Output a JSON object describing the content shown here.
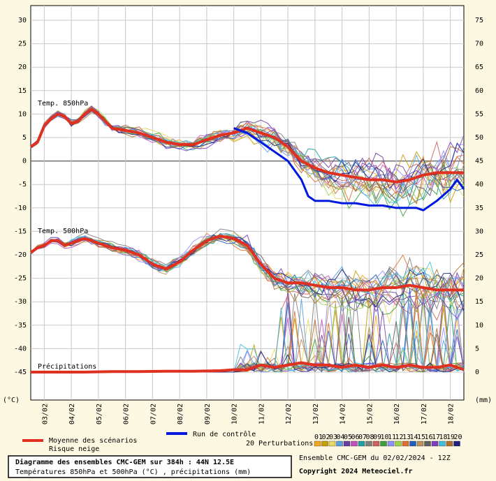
{
  "chart_data": {
    "type": "line",
    "y_unit_left": "(°C)",
    "y_unit_right": "(mm)",
    "y_left_ticks": [
      30,
      25,
      20,
      15,
      10,
      5,
      0,
      -5,
      -10,
      -15,
      -20,
      -25,
      -30,
      -35,
      -40,
      -45
    ],
    "y_right_ticks": [
      75,
      70,
      65,
      60,
      55,
      50,
      45,
      40,
      35,
      30,
      25,
      20,
      15,
      10,
      5,
      0
    ],
    "ylim_left": [
      -45,
      30
    ],
    "ylim_right": [
      0,
      75
    ],
    "x_ticks": [
      "03/02",
      "04/02",
      "05/02",
      "06/02",
      "07/02",
      "08/02",
      "09/02",
      "10/02",
      "11/02",
      "12/02",
      "13/02",
      "14/02",
      "15/02",
      "16/02",
      "17/02",
      "18/02"
    ],
    "x_days": [
      0.5,
      1.5,
      2.5,
      3.5,
      4.5,
      5.5,
      6.5,
      7.5,
      8.5,
      9.5,
      10.5,
      11.5,
      12.5,
      13.5,
      14.5,
      15.5
    ],
    "x_range_days": [
      0,
      16
    ],
    "section_labels": [
      "Temp. 850hPa",
      "Temp. 500hPa",
      "Précipitations"
    ],
    "series": [
      {
        "name": "Moyenne des scénarios",
        "color": "#e03020",
        "axis": "left",
        "group": "Temp. 850hPa",
        "x": [
          0,
          0.25,
          0.5,
          0.75,
          1,
          1.25,
          1.5,
          1.75,
          2,
          2.25,
          2.5,
          2.75,
          3,
          3.5,
          4,
          4.5,
          5,
          5.5,
          6,
          6.5,
          7,
          7.5,
          8,
          8.5,
          9,
          9.5,
          10,
          10.5,
          11,
          11.5,
          12,
          12.5,
          13,
          13.5,
          14,
          14.5,
          15,
          15.5,
          16
        ],
        "values": [
          3,
          4,
          7.5,
          9,
          10,
          9.5,
          8,
          8.5,
          10,
          11,
          10,
          8.5,
          7,
          6.5,
          6,
          5,
          4,
          3.5,
          3.5,
          4.5,
          5.5,
          6,
          7,
          6,
          5,
          3,
          0,
          -1.5,
          -2.5,
          -3,
          -3.5,
          -4,
          -4,
          -4.5,
          -4,
          -3,
          -2.5,
          -2.5,
          -2.5
        ]
      },
      {
        "name": "Run de contrôle",
        "color": "#0018e0",
        "axis": "left",
        "group": "Temp. 850hPa",
        "x": [
          7.5,
          8,
          8.5,
          9,
          9.5,
          10,
          10.25,
          10.5,
          11,
          11.5,
          12,
          12.5,
          13,
          13.5,
          14,
          14.25,
          14.5,
          15,
          15.5,
          15.75,
          16
        ],
        "values": [
          7,
          6,
          4,
          2,
          0,
          -4,
          -7.5,
          -8.5,
          -8.5,
          -9,
          -9,
          -9.5,
          -9.5,
          -10,
          -10,
          -10,
          -10.5,
          -8.5,
          -6,
          -4,
          -6
        ]
      },
      {
        "name": "Moyenne des scénarios",
        "color": "#e03020",
        "axis": "left",
        "group": "Temp. 500hPa",
        "x": [
          0,
          0.25,
          0.5,
          0.75,
          1,
          1.25,
          1.5,
          1.75,
          2,
          2.25,
          2.5,
          2.75,
          3,
          3.5,
          4,
          4.5,
          5,
          5.5,
          6,
          6.5,
          7,
          7.5,
          8,
          8.5,
          9,
          9.5,
          10,
          10.5,
          11,
          11.5,
          12,
          12.5,
          13,
          13.5,
          14,
          14.5,
          15,
          15.5,
          16
        ],
        "values": [
          -19.5,
          -18.5,
          -18,
          -17,
          -17,
          -18,
          -17.5,
          -17,
          -16.5,
          -17,
          -17.5,
          -18,
          -18.5,
          -19,
          -20,
          -22,
          -23,
          -21.5,
          -19,
          -17,
          -16,
          -16.5,
          -18,
          -22,
          -25,
          -26,
          -26,
          -26.5,
          -27,
          -27,
          -27.5,
          -27.5,
          -27,
          -27,
          -26.5,
          -27,
          -27.5,
          -27.5,
          -27.5
        ]
      },
      {
        "name": "Moyenne des scénarios",
        "color": "#e03020",
        "axis": "right",
        "group": "Précipitations",
        "x": [
          0,
          1,
          2,
          3,
          4,
          5,
          6,
          7,
          7.5,
          8,
          8.5,
          9,
          9.5,
          10,
          10.5,
          11,
          11.5,
          12,
          12.5,
          13,
          13.5,
          14,
          14.5,
          15,
          15.5,
          16
        ],
        "values": [
          0,
          0,
          0,
          0.1,
          0.1,
          0.2,
          0.2,
          0.3,
          0.5,
          0.5,
          1.5,
          1,
          1.5,
          2,
          1.5,
          1.5,
          1,
          1.5,
          1,
          1.5,
          1,
          1.5,
          1,
          1,
          1.5,
          0.5
        ]
      }
    ],
    "perturbation_colors": [
      "#f5a623",
      "#c8a000",
      "#e8d860",
      "#5aa0e0",
      "#6a3da8",
      "#c050c0",
      "#20a0a0",
      "#808080",
      "#d06060",
      "#40a040",
      "#9090ff",
      "#a0d050",
      "#e07030",
      "#2060c0",
      "#c09060",
      "#606060",
      "#8040c0",
      "#40c0e0",
      "#b07030",
      "#202080"
    ],
    "legend": {
      "mean": "Moyenne des scénarios",
      "snow": "Risque neige",
      "control": "Run de contrôle",
      "perturbations": "20 Perturbations",
      "pert_numbers": [
        "01",
        "02",
        "03",
        "04",
        "05",
        "06",
        "07",
        "08",
        "09",
        "10",
        "11",
        "12",
        "13",
        "14",
        "15",
        "16",
        "17",
        "18",
        "19",
        "20"
      ]
    },
    "title": "Diagramme des ensembles CMC-GEM sur 384h : 44N 12.5E",
    "subtitle": "Températures 850hPa et 500hPa (°C) , précipitations (mm)",
    "run_info": "Ensemble CMC-GEM du 02/02/2024 - 12Z",
    "copyright": "Copyright 2024 Meteociel.fr",
    "grid": true
  }
}
